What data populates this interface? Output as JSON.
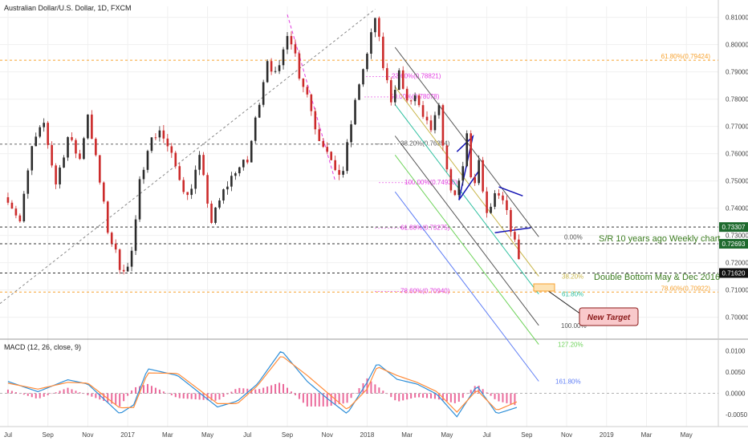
{
  "header": {
    "title": "Australian Dollar/U.S. Dollar, 1D, FXCM"
  },
  "indicator": {
    "label": "MACD (12, 26, close, 9)"
  },
  "colors": {
    "up": "#2b2b2b",
    "down": "#cc2b2b",
    "macd": "#2f8fd8",
    "signal": "#ff8c3a",
    "hist": "#e8508a",
    "fib_orange": "#f7a22f",
    "fib_pink": "#e23ce0",
    "channel_gray": "#555555",
    "channel_blue": "#5f7ef5",
    "channel_green": "#6ed35a",
    "channel_yellow": "#c9b64a",
    "channel_teal": "#2fc0a0",
    "triangle": "#1414b4",
    "callout_fill": "#f9c9cb",
    "callout_stroke": "#8b1a1a"
  },
  "chart_data": [
    {
      "type": "line",
      "role": "price",
      "y_axis_ticks": [
        "0.81000",
        "0.80000",
        "0.79000",
        "0.78000",
        "0.77000",
        "0.76000",
        "0.75000",
        "0.74000",
        "0.73000",
        "0.72000",
        "0.71000",
        "0.70000"
      ],
      "y_tick_values": [
        0.81,
        0.8,
        0.79,
        0.78,
        0.77,
        0.76,
        0.75,
        0.74,
        0.73,
        0.72,
        0.71,
        0.7
      ],
      "x_axis_ticks": [
        "Jul",
        "Sep",
        "Nov",
        "2017",
        "Mar",
        "May",
        "Jul",
        "Sep",
        "Nov",
        "2018",
        "Mar",
        "May",
        "Jul",
        "Sep",
        "Nov",
        "2019",
        "Mar",
        "May"
      ],
      "x_tick_months": [
        0,
        2,
        4,
        6,
        8,
        10,
        12,
        14,
        16,
        18,
        20,
        22,
        24,
        26,
        28,
        30,
        32,
        34
      ],
      "ylim": [
        0.694,
        0.814
      ],
      "x_range_months": [
        -0.4,
        35.6
      ],
      "path_x_months": [
        0,
        0.6,
        1.2,
        1.8,
        2.4,
        3.0,
        3.6,
        4.0,
        4.4,
        5.0,
        5.6,
        6.0,
        6.3,
        6.6,
        7.0,
        7.6,
        8.3,
        9.0,
        9.6,
        10.2,
        10.8,
        11.4,
        12.0,
        12.5,
        13.0,
        13.5,
        14.0,
        14.3,
        14.6,
        15.0,
        15.5,
        16.0,
        16.4,
        16.8,
        17.2,
        17.6,
        18.0,
        18.4,
        18.8,
        19.2,
        19.6,
        20.0,
        20.4,
        20.8,
        21.2,
        21.6,
        22.0,
        22.4,
        22.8,
        23.0,
        23.3,
        23.6,
        24.0,
        24.4,
        24.8,
        25.2,
        25.5,
        25.7
      ],
      "path_values": [
        0.744,
        0.735,
        0.762,
        0.771,
        0.749,
        0.766,
        0.758,
        0.775,
        0.758,
        0.732,
        0.719,
        0.718,
        0.727,
        0.749,
        0.763,
        0.769,
        0.757,
        0.744,
        0.758,
        0.735,
        0.746,
        0.754,
        0.757,
        0.776,
        0.795,
        0.787,
        0.805,
        0.8,
        0.789,
        0.782,
        0.767,
        0.762,
        0.752,
        0.754,
        0.771,
        0.786,
        0.796,
        0.81,
        0.792,
        0.78,
        0.79,
        0.778,
        0.781,
        0.772,
        0.769,
        0.776,
        0.753,
        0.743,
        0.755,
        0.767,
        0.745,
        0.756,
        0.737,
        0.744,
        0.742,
        0.733,
        0.724,
        0.721
      ],
      "series": [
        {
          "name": "MACD",
          "x_months": [
            0,
            1.5,
            3,
            4,
            5.6,
            6.3,
            7,
            8.5,
            10.5,
            11.5,
            12.5,
            13.7,
            15,
            16,
            17,
            18,
            18.5,
            19.5,
            20.5,
            21.5,
            22.5,
            23.5,
            24.5,
            25.5
          ],
          "values": [
            0.0028,
            0.0004,
            0.0032,
            0.0022,
            -0.0048,
            -0.0027,
            0.0058,
            0.0042,
            -0.0032,
            -0.0018,
            0.0022,
            0.0101,
            0.0028,
            -0.0012,
            -0.0048,
            0.0026,
            0.0071,
            0.0033,
            0.0022,
            -0.0002,
            -0.0055,
            0.0018,
            -0.0048,
            -0.0033
          ]
        },
        {
          "name": "Signal",
          "x_months": [
            0,
            1.5,
            3,
            4,
            5.6,
            6.3,
            7,
            8.5,
            10.5,
            11.5,
            12.5,
            13.7,
            15,
            16,
            17,
            18,
            18.5,
            19.5,
            20.5,
            21.5,
            22.5,
            23.5,
            24.5,
            25.5
          ],
          "values": [
            0.0024,
            0.001,
            0.0026,
            0.0024,
            -0.0034,
            -0.0033,
            0.0048,
            0.0047,
            -0.0024,
            -0.0024,
            0.0018,
            0.0089,
            0.0042,
            0.0002,
            -0.0038,
            0.001,
            0.0063,
            0.0042,
            0.0026,
            0.0004,
            -0.0044,
            0.0008,
            -0.004,
            -0.002
          ]
        }
      ],
      "macd_ylim": [
        -0.0078,
        0.0118
      ],
      "macd_ticks": [
        "0.0100",
        "0.0050",
        "0.0000",
        "-0.0050"
      ],
      "macd_tick_values": [
        0.01,
        0.005,
        0,
        -0.005
      ],
      "levels": [
        {
          "value": 0.79424,
          "label": "61.80%(0.79424)",
          "from_month": -0.4,
          "to_month": 35.6,
          "color": "#f7a22f",
          "dash": true
        },
        {
          "value": 0.70922,
          "label": "78.60%(0.70922)",
          "from_month": -0.4,
          "to_month": 35.6,
          "color": "#f7a22f",
          "dash": true
        },
        {
          "value": 0.7635,
          "label": "",
          "from_month": -0.4,
          "to_month": 19.3,
          "color": "#666666",
          "dash": true
        },
        {
          "value": 0.73307,
          "label": "",
          "from_month": -0.4,
          "to_month": 35.6,
          "color": "#333333",
          "dash": true
        },
        {
          "value": 0.72693,
          "label": "",
          "from_month": -0.4,
          "to_month": 35.6,
          "color": "#333333",
          "dash": true
        },
        {
          "value": 0.7162,
          "label": "",
          "from_month": -0.4,
          "to_month": 35.6,
          "color": "#333333",
          "dash": true
        }
      ],
      "price_tags": [
        {
          "value": 0.73307,
          "label": "0.73307",
          "color": "#1e6a2e"
        },
        {
          "value": 0.72693,
          "label": "0.72693",
          "color": "#1e6a2e"
        },
        {
          "value": 0.7162,
          "label": "0.71620",
          "color": "#111111"
        }
      ],
      "fib_retracement": [
        {
          "value": 0.78821,
          "label": "23.60%(0.78821)"
        },
        {
          "value": 0.78078,
          "label": "50.00%(0.78078)"
        },
        {
          "value": 0.76354,
          "label": "38.20%(0.76354)"
        },
        {
          "value": 0.74936,
          "label": "100.00%(0.74936)"
        },
        {
          "value": 0.73275,
          "label": "61.80%(0.73275)"
        },
        {
          "value": 0.7094,
          "label": "78.60%(0.70940)"
        }
      ],
      "channel_labels": [
        "0.00%",
        "38.20%",
        "61.80%",
        "100.00%",
        "127.20%",
        "161.80%"
      ],
      "annotations": {
        "sr_note": "S/R 10 years ago Weekly chart",
        "double_bottom": "Double Bottom May & Dec 2016",
        "target": "New Target"
      }
    }
  ]
}
